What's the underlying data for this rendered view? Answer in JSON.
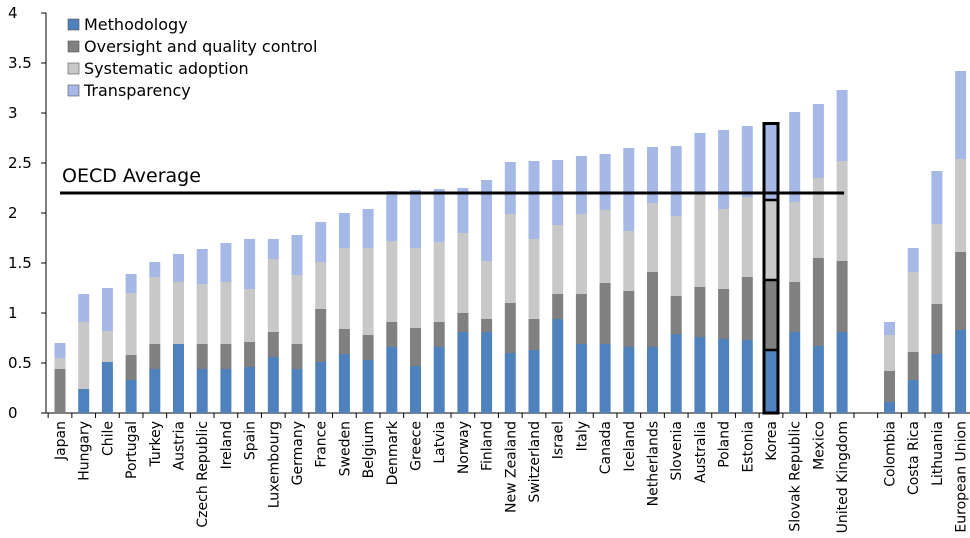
{
  "chart_data": {
    "type": "bar",
    "stacked": true,
    "categories": [
      "Japan",
      "Hungary",
      "Chile",
      "Portugal",
      "Turkey",
      "Austria",
      "Czech Republic",
      "Ireland",
      "Spain",
      "Luxembourg",
      "Germany",
      "France",
      "Sweden",
      "Belgium",
      "Denmark",
      "Greece",
      "Latvia",
      "Norway",
      "Finland",
      "New Zealand",
      "Switzerland",
      "Israel",
      "Italy",
      "Canada",
      "Iceland",
      "Netherlands",
      "Slovenia",
      "Australia",
      "Poland",
      "Estonia",
      "Korea",
      "Slovak Republic",
      "Mexico",
      "United Kingdom",
      "",
      "Colombia",
      "Costa Rica",
      "Lithuania",
      "European Union"
    ],
    "series": [
      {
        "name": "Methodology",
        "color": "#4f81bd",
        "values": [
          0,
          0.24,
          0.51,
          0.33,
          0.44,
          0.69,
          0.44,
          0.44,
          0.46,
          0.56,
          0.44,
          0.51,
          0.59,
          0.53,
          0.66,
          0.47,
          0.66,
          0.81,
          0.81,
          0.6,
          0.63,
          0.94,
          0.69,
          0.69,
          0.66,
          0.66,
          0.79,
          0.76,
          0.74,
          0.73,
          0.63,
          0.81,
          0.67,
          0.81,
          null,
          0.11,
          0.33,
          0.59,
          0.83
        ]
      },
      {
        "name": "Oversight and quality control",
        "color": "#808080",
        "values": [
          0.44,
          0,
          0,
          0.25,
          0.25,
          0,
          0.25,
          0.25,
          0.25,
          0.25,
          0.25,
          0.53,
          0.25,
          0.25,
          0.25,
          0.38,
          0.25,
          0.19,
          0.13,
          0.5,
          0.31,
          0.25,
          0.5,
          0.61,
          0.56,
          0.75,
          0.38,
          0.5,
          0.5,
          0.63,
          0.7,
          0.5,
          0.88,
          0.71,
          null,
          0.31,
          0.28,
          0.5,
          0.78
        ]
      },
      {
        "name": "Systematic adoption",
        "color": "#c8c8c8",
        "values": [
          0.11,
          0.67,
          0.31,
          0.62,
          0.67,
          0.62,
          0.6,
          0.62,
          0.53,
          0.73,
          0.69,
          0.47,
          0.81,
          0.87,
          0.81,
          0.8,
          0.8,
          0.8,
          0.58,
          0.89,
          0.8,
          0.69,
          0.8,
          0.73,
          0.6,
          0.69,
          0.8,
          0.95,
          0.8,
          0.8,
          0.8,
          0.8,
          0.8,
          1.0,
          null,
          0.36,
          0.8,
          0.8,
          0.93
        ]
      },
      {
        "name": "Transparency",
        "color": "#a6b9e6",
        "values": [
          0.15,
          0.28,
          0.43,
          0.19,
          0.15,
          0.28,
          0.35,
          0.39,
          0.5,
          0.2,
          0.4,
          0.4,
          0.35,
          0.39,
          0.5,
          0.58,
          0.53,
          0.45,
          0.81,
          0.52,
          0.78,
          0.65,
          0.58,
          0.56,
          0.83,
          0.56,
          0.7,
          0.59,
          0.79,
          0.71,
          0.75,
          0.9,
          0.74,
          0.71,
          null,
          0.13,
          0.24,
          0.53,
          0.88
        ]
      }
    ],
    "ylim": [
      0,
      4
    ],
    "yticks": [
      "0",
      "0.5",
      "1",
      "1.5",
      "2",
      "2.5",
      "3",
      "3.5",
      "4"
    ],
    "legend_position": "top-left",
    "grid": false,
    "reference_line": {
      "label": "OECD Average",
      "value": 2.2
    },
    "highlight": "Korea",
    "xlabel": "",
    "ylabel": "",
    "title": ""
  }
}
